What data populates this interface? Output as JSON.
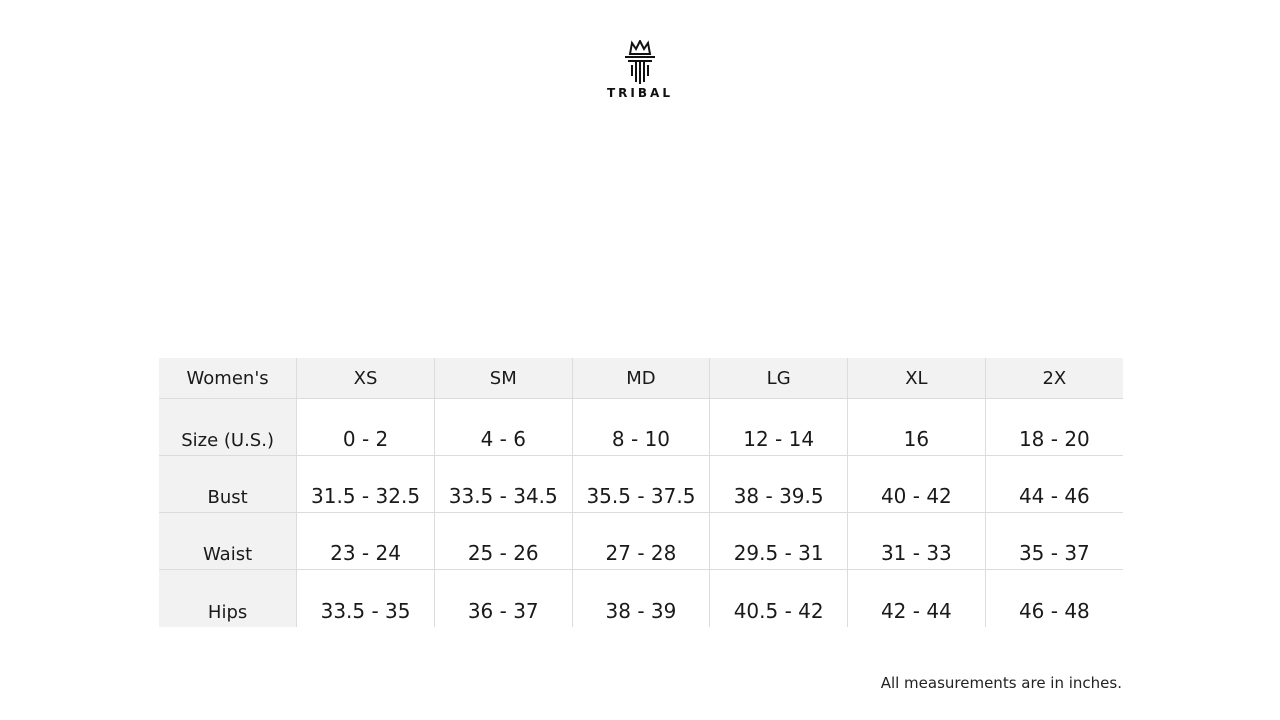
{
  "brand": {
    "name": "TRIBAL",
    "logo_icon": "crown-t-logo"
  },
  "table": {
    "headers": [
      "Women's",
      "XS",
      "SM",
      "MD",
      "LG",
      "XL",
      "2X"
    ],
    "rows": [
      {
        "label": "Size (U.S.)",
        "values": [
          "0 - 2",
          "4 - 6",
          "8 - 10",
          "12 - 14",
          "16",
          "18 - 20"
        ]
      },
      {
        "label": "Bust",
        "values": [
          "31.5 - 32.5",
          "33.5 - 34.5",
          "35.5 - 37.5",
          "38 - 39.5",
          "40 - 42",
          "44 - 46"
        ]
      },
      {
        "label": "Waist",
        "values": [
          "23 - 24",
          "25 - 26",
          "27 - 28",
          "29.5 - 31",
          "31 - 33",
          "35 - 37"
        ]
      },
      {
        "label": "Hips",
        "values": [
          "33.5 - 35",
          "36 - 37",
          "38 - 39",
          "40.5 - 42",
          "42 - 44",
          "46 - 48"
        ]
      }
    ]
  },
  "note": "All measurements are in inches."
}
